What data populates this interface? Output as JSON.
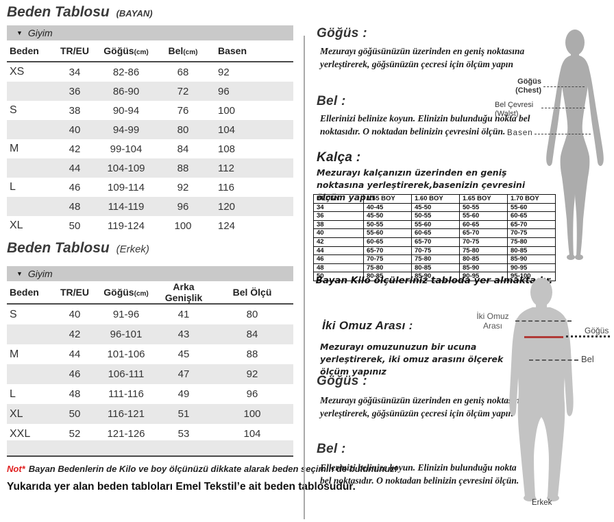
{
  "titles": {
    "women": {
      "main": "Beden Tablosu",
      "suffix": "(BAYAN)"
    },
    "men": {
      "main": "Beden Tablosu",
      "suffix": "(Erkek)"
    }
  },
  "women_table": {
    "section_label": "Giyim",
    "headers": [
      {
        "label": "Beden"
      },
      {
        "label": "TR/EU"
      },
      {
        "label": "Göğüs",
        "unit": "(cm)"
      },
      {
        "label": "Bel",
        "unit": "(cm)"
      },
      {
        "label": "Basen"
      }
    ],
    "rows": [
      [
        "XS",
        "34",
        "82-86",
        "68",
        "92"
      ],
      [
        "",
        "36",
        "86-90",
        "72",
        "96"
      ],
      [
        "S",
        "38",
        "90-94",
        "76",
        "100"
      ],
      [
        "",
        "40",
        "94-99",
        "80",
        "104"
      ],
      [
        "M",
        "42",
        "99-104",
        "84",
        "108"
      ],
      [
        "",
        "44",
        "104-109",
        "88",
        "112"
      ],
      [
        "L",
        "46",
        "109-114",
        "92",
        "116"
      ],
      [
        "",
        "48",
        "114-119",
        "96",
        "120"
      ],
      [
        "XL",
        "50",
        "119-124",
        "100",
        "124"
      ]
    ]
  },
  "men_table": {
    "section_label": "Giyim",
    "headers": [
      {
        "label": "Beden"
      },
      {
        "label": "TR/EU"
      },
      {
        "label": "Göğüs",
        "unit": "(cm)"
      },
      {
        "label": "Arka Genişlik"
      },
      {
        "label": "Bel Ölçü"
      }
    ],
    "rows": [
      [
        "S",
        "40",
        "91-96",
        "41",
        "80"
      ],
      [
        "",
        "42",
        "96-101",
        "43",
        "84"
      ],
      [
        "M",
        "44",
        "101-106",
        "45",
        "88"
      ],
      [
        "",
        "46",
        "106-111",
        "47",
        "92"
      ],
      [
        "L",
        "48",
        "111-116",
        "49",
        "96"
      ],
      [
        "XL",
        "50",
        "116-121",
        "51",
        "100"
      ],
      [
        "XXL",
        "52",
        "121-126",
        "53",
        "104"
      ]
    ]
  },
  "notes": {
    "note_prefix": "Not*",
    "note_text": "Bayan Bedenlerin de Kilo ve boy ölçünüzü dikkate alarak beden seçimin de bulununuz!",
    "footer": "Yukarıda yer alan beden tabloları Emel Tekstil’e ait beden tablosudur."
  },
  "measure_women": {
    "gogus_heading": "Göğüs :",
    "gogus_text": "Mezurayı göğüsünüzün üzerinden en geniş noktasına yerleştirerek, göğsünüzün çecresi için ölçüm yapın",
    "bel_heading": "Bel :",
    "bel_text": "Ellerinizi belinize koyun. Elinizin bulunduğu nokta bel noktasıdır. O noktadan belinizin çevresini ölçün.",
    "kalca_heading": "Kalça :",
    "kalca_text": "Mezurayı kalçanızın üzerinden en geniş noktasına yerleştirerek,basenizin çevresini ölçüm yapın",
    "kilo_caption": "Bayan Kilo ölçüleriniz tabloda yer almaktadır."
  },
  "kilo_table": {
    "headers": [
      "BEDEN",
      "1.55 BOY",
      "1.60 BOY",
      "1.65 BOY",
      "1.70 BOY"
    ],
    "rows": [
      [
        "34",
        "40-45",
        "45-50",
        "50-55",
        "55-60"
      ],
      [
        "36",
        "45-50",
        "50-55",
        "55-60",
        "60-65"
      ],
      [
        "38",
        "50-55",
        "55-60",
        "60-65",
        "65-70"
      ],
      [
        "40",
        "55-60",
        "60-65",
        "65-70",
        "70-75"
      ],
      [
        "42",
        "60-65",
        "65-70",
        "70-75",
        "75-80"
      ],
      [
        "44",
        "65-70",
        "70-75",
        "75-80",
        "80-85"
      ],
      [
        "46",
        "70-75",
        "75-80",
        "80-85",
        "85-90"
      ],
      [
        "48",
        "75-80",
        "80-85",
        "85-90",
        "90-95"
      ],
      [
        "50",
        "80-85",
        "85-90",
        "90-95",
        "95-100"
      ]
    ]
  },
  "measure_men": {
    "omuz_heading": "İki Omuz Arası :",
    "omuz_text": "Mezurayı omuzunuzun bir ucuna yerleştirerek, iki omuz arasını ölçerek ölçüm yapınız",
    "gogus_heading": "Göğüs :",
    "gogus_text": "Mezurayı göğüsünüzün üzerinden en geniş noktasına yerleştirerek, göğsünüzün çecresi için ölçüm yapın",
    "bel_heading": "Bel :",
    "bel_text": "Ellerinizi belinize koyun. Elinizin bulunduğu nokta bel noktasıdır. O noktadan belinizin çevresini ölçün."
  },
  "female_figure": {
    "label_gogus": "Göğüs",
    "label_gogus_en": "(Chest)",
    "label_bel": "Bel Çevresi",
    "label_bel_en": "(Walst)",
    "label_basen": "Basen"
  },
  "male_figure": {
    "label_omuz_line1": "İki Omuz",
    "label_omuz_line2": "Arası",
    "label_gogus": "Göğüs",
    "label_bel": "Bel",
    "caption": "Erkek"
  },
  "colors": {
    "note_red": "#e02020",
    "chest_line_red": "#b03a36",
    "section_bar_gray": "#c9c9c9",
    "row_alt_gray": "#e8e8e8",
    "silhouette_female": "#acacac",
    "silhouette_male": "#c3c3c3"
  }
}
